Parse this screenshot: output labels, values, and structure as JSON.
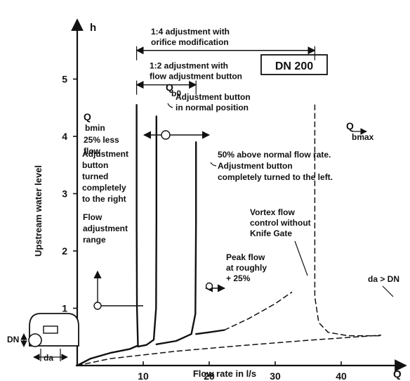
{
  "chart_data": {
    "type": "line",
    "title": "",
    "badge": "DN 200",
    "x_axis": {
      "label": "Flow rate in l/s",
      "symbol": "Q",
      "ticks": [
        10,
        20,
        30,
        40
      ],
      "range": [
        0,
        46
      ]
    },
    "y_axis": {
      "label": "Upstream water level",
      "symbol": "h",
      "ticks": [
        1,
        2,
        3,
        4,
        5
      ],
      "range": [
        0,
        5.9
      ]
    },
    "series": [
      {
        "points": [
          [
            0,
            0
          ],
          [
            2,
            0.12
          ],
          [
            5,
            0.22
          ],
          [
            8,
            0.29
          ],
          [
            9.2,
            0.35
          ],
          [
            9.05,
            1.0
          ],
          [
            9.0,
            2.5
          ],
          [
            9.0,
            4.55
          ]
        ]
      },
      {
        "points": [
          [
            9.2,
            0.33
          ],
          [
            10.5,
            0.36
          ],
          [
            11.6,
            0.45
          ],
          [
            11.95,
            1.0
          ],
          [
            12,
            2.5
          ],
          [
            12,
            4.35
          ]
        ]
      },
      {
        "points": [
          [
            12,
            0.37
          ],
          [
            15,
            0.43
          ],
          [
            17.3,
            0.55
          ],
          [
            17.9,
            0.9
          ],
          [
            18,
            2.5
          ],
          [
            18,
            3.9
          ]
        ]
      },
      {
        "points": [
          [
            18,
            0.55
          ],
          [
            20,
            0.58
          ],
          [
            22.3,
            0.62
          ]
        ]
      },
      {
        "style": "dashed",
        "points": [
          [
            22.3,
            0.62
          ],
          [
            26,
            0.82
          ],
          [
            30,
            1.08
          ],
          [
            32.5,
            1.28
          ]
        ]
      },
      {
        "style": "dashed",
        "points": [
          [
            0,
            0
          ],
          [
            5,
            0.12
          ],
          [
            15,
            0.25
          ],
          [
            25,
            0.35
          ],
          [
            35,
            0.44
          ],
          [
            46,
            0.53
          ]
        ]
      },
      {
        "style": "dashed",
        "points": [
          [
            36,
            4.55
          ],
          [
            36,
            1.2
          ],
          [
            36.6,
            0.75
          ],
          [
            38,
            0.58
          ],
          [
            41,
            0.52
          ],
          [
            46,
            0.52
          ]
        ]
      }
    ],
    "spans": [
      {
        "label": "1:4 adjustment with\norifice modification",
        "from": 9,
        "to": 36,
        "y": 5.5
      },
      {
        "label": "1:2 adjustment with\nflow adjustment button",
        "from": 9,
        "to": 18,
        "y": 4.9
      }
    ],
    "annotations": [
      {
        "main": "Q",
        "sub": "bmin"
      },
      {
        "main": "Q",
        "sub": "b0"
      },
      {
        "main": "Q",
        "sub": "bmax"
      },
      {
        "text": "25% less\nflow"
      },
      {
        "text": "Adjustment button\nin normal position"
      },
      {
        "text": "Adjustment\nbutton\nturned\ncompletely\nto the right"
      },
      {
        "text": "Flow\nadjustment\nrange"
      },
      {
        "text": "50% above normal flow rate.\nAdjustment button\ncompletely turned to the left."
      },
      {
        "text": "Vortex flow\ncontrol without\nKnife Gate"
      },
      {
        "text": "Peak flow\nat roughly\n+ 25%"
      },
      {
        "text": "da > DN"
      }
    ],
    "detail_labels": {
      "dn": "DN",
      "da": "da"
    },
    "grid": false,
    "legend": "none"
  }
}
